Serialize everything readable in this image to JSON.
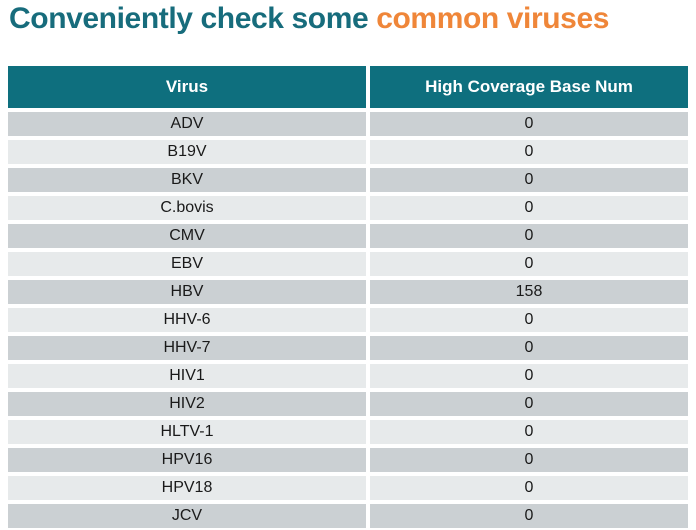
{
  "title": {
    "part1": "Conveniently check some ",
    "part2": "common viruses"
  },
  "colors": {
    "title_teal": "#176c7c",
    "title_orange": "#ef8639",
    "header_bg": "#0e6f7e",
    "header_text": "#ffffff",
    "row_dark": "#cbd0d3",
    "row_light": "#e7eaeb",
    "cell_text": "#1a1a1a"
  },
  "table": {
    "columns": [
      "Virus",
      "High Coverage Base Num"
    ],
    "rows": [
      {
        "virus": "ADV",
        "value": "0"
      },
      {
        "virus": "B19V",
        "value": "0"
      },
      {
        "virus": "BKV",
        "value": "0"
      },
      {
        "virus": "C.bovis",
        "value": "0"
      },
      {
        "virus": "CMV",
        "value": "0"
      },
      {
        "virus": "EBV",
        "value": "0"
      },
      {
        "virus": "HBV",
        "value": "158"
      },
      {
        "virus": "HHV-6",
        "value": "0"
      },
      {
        "virus": "HHV-7",
        "value": "0"
      },
      {
        "virus": "HIV1",
        "value": "0"
      },
      {
        "virus": "HIV2",
        "value": "0"
      },
      {
        "virus": "HLTV-1",
        "value": "0"
      },
      {
        "virus": "HPV16",
        "value": "0"
      },
      {
        "virus": "HPV18",
        "value": "0"
      },
      {
        "virus": "JCV",
        "value": "0"
      }
    ]
  }
}
